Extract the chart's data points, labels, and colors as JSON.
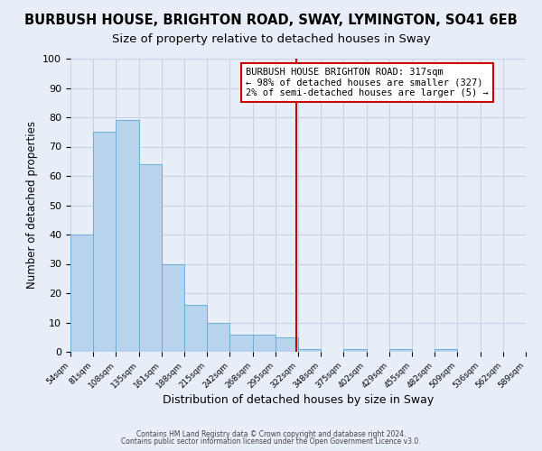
{
  "title": "BURBUSH HOUSE, BRIGHTON ROAD, SWAY, LYMINGTON, SO41 6EB",
  "subtitle": "Size of property relative to detached houses in Sway",
  "xlabel": "Distribution of detached houses by size in Sway",
  "ylabel": "Number of detached properties",
  "bar_values": [
    40,
    75,
    79,
    64,
    30,
    16,
    10,
    6,
    6,
    5,
    1,
    0,
    1,
    0,
    1,
    0,
    1
  ],
  "bin_labels": [
    "54sqm",
    "81sqm",
    "108sqm",
    "135sqm",
    "161sqm",
    "188sqm",
    "215sqm",
    "242sqm",
    "268sqm",
    "295sqm",
    "322sqm",
    "348sqm",
    "375sqm",
    "402sqm",
    "429sqm",
    "455sqm",
    "482sqm",
    "509sqm",
    "536sqm",
    "562sqm",
    "589sqm"
  ],
  "bar_color": "#b8d4ed",
  "bar_edge_color": "#6aaed6",
  "marker_label": "BURBUSH HOUSE BRIGHTON ROAD: 317sqm",
  "annotation_line1": "← 98% of detached houses are smaller (327)",
  "annotation_line2": "2% of semi-detached houses are larger (5) →",
  "vline_color": "#cc0000",
  "annotation_box_edge_color": "#cc0000",
  "ylim": [
    0,
    100
  ],
  "yticks": [
    0,
    10,
    20,
    30,
    40,
    50,
    60,
    70,
    80,
    90,
    100
  ],
  "footer1": "Contains HM Land Registry data © Crown copyright and database right 2024.",
  "footer2": "Contains public sector information licensed under the Open Government Licence v3.0.",
  "bg_color": "#e8eef8",
  "grid_color": "#c8d4e4",
  "title_fontsize": 10.5,
  "subtitle_fontsize": 9.5,
  "vline_x_index": 10
}
